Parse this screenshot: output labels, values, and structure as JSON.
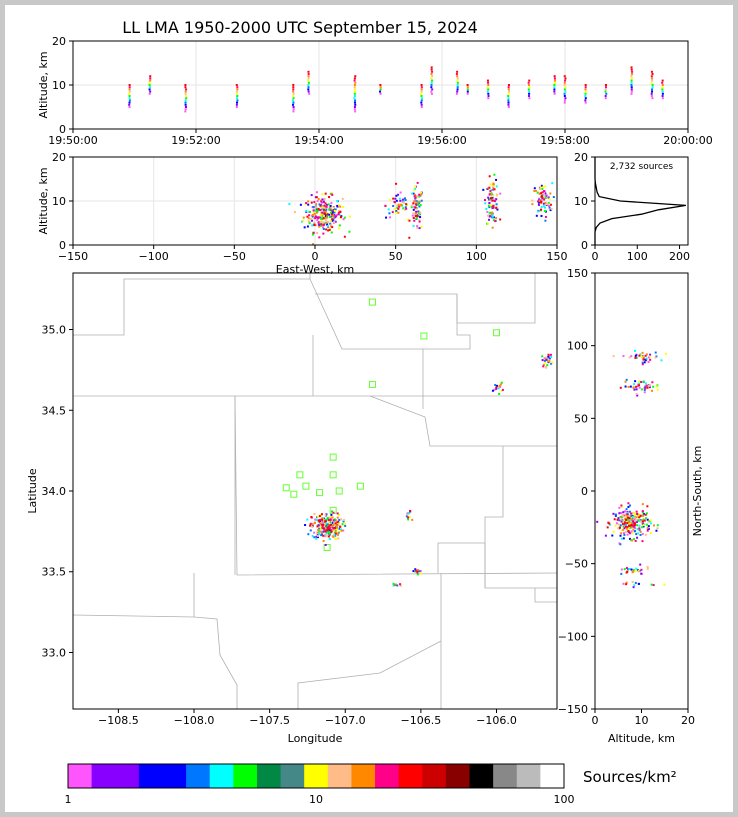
{
  "chart_data": [
    {
      "panel": "altitude-vs-time",
      "type": "scatter",
      "title": "LL LMA 1950-2000 UTC September 15, 2024",
      "ylabel": "Altitude, km",
      "xlabel": "",
      "xlim": [
        "19:50:00",
        "20:00:00"
      ],
      "ylim": [
        0,
        20
      ],
      "xticks": [
        "19:50:00",
        "19:52:00",
        "19:54:00",
        "19:56:00",
        "19:58:00",
        "20:00:00"
      ],
      "yticks": [
        "0",
        "10",
        "20"
      ],
      "grid": true,
      "columns": [
        {
          "t": "19:50:55",
          "zmin": 5,
          "zmax": 10
        },
        {
          "t": "19:51:15",
          "zmin": 8,
          "zmax": 12
        },
        {
          "t": "19:51:50",
          "zmin": 4,
          "zmax": 10
        },
        {
          "t": "19:52:40",
          "zmin": 5,
          "zmax": 10
        },
        {
          "t": "19:53:35",
          "zmin": 4,
          "zmax": 10
        },
        {
          "t": "19:53:50",
          "zmin": 8,
          "zmax": 13
        },
        {
          "t": "19:54:35",
          "zmin": 4,
          "zmax": 12
        },
        {
          "t": "19:55:00",
          "zmin": 8,
          "zmax": 10
        },
        {
          "t": "19:55:40",
          "zmin": 5,
          "zmax": 10
        },
        {
          "t": "19:55:50",
          "zmin": 8,
          "zmax": 14
        },
        {
          "t": "19:56:15",
          "zmin": 8,
          "zmax": 13
        },
        {
          "t": "19:56:25",
          "zmin": 8,
          "zmax": 10
        },
        {
          "t": "19:56:45",
          "zmin": 7,
          "zmax": 11
        },
        {
          "t": "19:57:05",
          "zmin": 5,
          "zmax": 10
        },
        {
          "t": "19:57:25",
          "zmin": 7,
          "zmax": 11
        },
        {
          "t": "19:57:50",
          "zmin": 8,
          "zmax": 12
        },
        {
          "t": "19:58:00",
          "zmin": 6,
          "zmax": 12
        },
        {
          "t": "19:58:20",
          "zmin": 6,
          "zmax": 10
        },
        {
          "t": "19:58:40",
          "zmin": 7,
          "zmax": 10
        },
        {
          "t": "19:59:05",
          "zmin": 8,
          "zmax": 14
        },
        {
          "t": "19:59:25",
          "zmin": 7,
          "zmax": 13
        },
        {
          "t": "19:59:35",
          "zmin": 7,
          "zmax": 11
        }
      ]
    },
    {
      "panel": "altitude-vs-east-west",
      "type": "scatter",
      "xlabel": "East-West, km",
      "ylabel": "Altitude, km",
      "xlim": [
        -150,
        150
      ],
      "ylim": [
        0,
        20
      ],
      "xticks": [
        "−150",
        "−100",
        "−50",
        "0",
        "50",
        "100",
        "150"
      ],
      "yticks": [
        "0",
        "10",
        "20"
      ],
      "grid": true,
      "clusters": [
        {
          "x": 5,
          "z": 7,
          "sx": 6,
          "sz": 2,
          "n": 260
        },
        {
          "x": 52,
          "z": 9,
          "sx": 4,
          "sz": 1.5,
          "n": 50
        },
        {
          "x": 63,
          "z": 8,
          "sx": 2,
          "sz": 2.5,
          "n": 80
        },
        {
          "x": 110,
          "z": 10,
          "sx": 2,
          "sz": 2.5,
          "n": 90
        },
        {
          "x": 141,
          "z": 10,
          "sx": 3,
          "sz": 2,
          "n": 80
        }
      ]
    },
    {
      "panel": "altitude-histogram",
      "type": "line",
      "annotation": "2,732 sources",
      "xlim": [
        0,
        220
      ],
      "ylim": [
        0,
        20
      ],
      "xticks": [
        "0",
        "100",
        "200"
      ],
      "yticks": [
        "0",
        "10",
        "20"
      ],
      "counts": [
        {
          "z": 0,
          "n": 0
        },
        {
          "z": 1,
          "n": 0
        },
        {
          "z": 2,
          "n": 0
        },
        {
          "z": 3,
          "n": 0
        },
        {
          "z": 4,
          "n": 3
        },
        {
          "z": 5,
          "n": 12
        },
        {
          "z": 6,
          "n": 40
        },
        {
          "z": 7,
          "n": 110
        },
        {
          "z": 8,
          "n": 150
        },
        {
          "z": 9,
          "n": 215
        },
        {
          "z": 10,
          "n": 60
        },
        {
          "z": 11,
          "n": 10
        },
        {
          "z": 12,
          "n": 5
        },
        {
          "z": 13,
          "n": 3
        },
        {
          "z": 14,
          "n": 1
        },
        {
          "z": 15,
          "n": 0
        },
        {
          "z": 16,
          "n": 0
        },
        {
          "z": 17,
          "n": 0
        },
        {
          "z": 18,
          "n": 0
        },
        {
          "z": 19,
          "n": 0
        },
        {
          "z": 20,
          "n": 0
        }
      ]
    },
    {
      "panel": "plan-view",
      "type": "scatter",
      "xlabel": "Longitude",
      "ylabel": "Latitude",
      "xlim": [
        -108.8,
        -105.6
      ],
      "ylim": [
        32.65,
        35.35
      ],
      "xticks": [
        "−108.5",
        "−108.0",
        "−107.5",
        "−107.0",
        "−106.5",
        "−106.0"
      ],
      "yticks": [
        "33.0",
        "33.5",
        "34.0",
        "34.5",
        "35.0"
      ],
      "clusters": [
        {
          "lon": -107.12,
          "lat": 33.78,
          "slon": 0.05,
          "slat": 0.04,
          "n": 260
        },
        {
          "lon": -106.58,
          "lat": 33.84,
          "slon": 0.01,
          "slat": 0.02,
          "n": 12
        },
        {
          "lon": -106.52,
          "lat": 33.5,
          "slon": 0.02,
          "slat": 0.01,
          "n": 15
        },
        {
          "lon": -106.66,
          "lat": 33.42,
          "slon": 0.02,
          "slat": 0.005,
          "n": 10
        },
        {
          "lon": -105.99,
          "lat": 34.64,
          "slon": 0.015,
          "slat": 0.015,
          "n": 15
        },
        {
          "lon": -105.66,
          "lat": 34.81,
          "slon": 0.02,
          "slat": 0.02,
          "n": 25
        }
      ],
      "stations": [
        {
          "lon": -106.82,
          "lat": 35.17
        },
        {
          "lon": -106.48,
          "lat": 34.96
        },
        {
          "lon": -106.0,
          "lat": 34.98
        },
        {
          "lon": -106.82,
          "lat": 34.66
        },
        {
          "lon": -107.08,
          "lat": 34.21
        },
        {
          "lon": -107.3,
          "lat": 34.1
        },
        {
          "lon": -107.08,
          "lat": 34.1
        },
        {
          "lon": -107.39,
          "lat": 34.02
        },
        {
          "lon": -107.26,
          "lat": 34.03
        },
        {
          "lon": -106.9,
          "lat": 34.03
        },
        {
          "lon": -107.34,
          "lat": 33.98
        },
        {
          "lon": -107.17,
          "lat": 33.99
        },
        {
          "lon": -107.04,
          "lat": 34.0
        },
        {
          "lon": -107.08,
          "lat": 33.88
        },
        {
          "lon": -107.12,
          "lat": 33.65
        }
      ]
    },
    {
      "panel": "north-south-vs-altitude",
      "type": "scatter",
      "xlabel": "Altitude, km",
      "ylabel": "North-South, km",
      "xlim": [
        0,
        20
      ],
      "ylim": [
        -150,
        150
      ],
      "xticks": [
        "0",
        "10",
        "20"
      ],
      "yticks": [
        "−150",
        "−100",
        "−50",
        "0",
        "50",
        "100",
        "150"
      ],
      "clusters": [
        {
          "z": 10,
          "y": 92,
          "sz": 2,
          "sy": 2,
          "n": 40
        },
        {
          "z": 10,
          "y": 72,
          "sz": 2,
          "sy": 2,
          "n": 45
        },
        {
          "z": 8,
          "y": -22,
          "sz": 2,
          "sy": 5,
          "n": 250
        },
        {
          "z": 8,
          "y": -55,
          "sz": 2,
          "sy": 1.5,
          "n": 25
        },
        {
          "z": 9,
          "y": -64,
          "sz": 2,
          "sy": 1,
          "n": 12
        }
      ]
    },
    {
      "panel": "colorbar",
      "type": "heatmap",
      "label": "Sources/km²",
      "range": [
        1,
        100
      ],
      "ticks": [
        "1",
        "10",
        "100"
      ],
      "colors": [
        "#ff55ff",
        "#8800ff",
        "#8800ff",
        "#0000ff",
        "#0000ff",
        "#0077ff",
        "#00ffff",
        "#00ff00",
        "#008844",
        "#448888",
        "#ffff00",
        "#ffbb88",
        "#ff8800",
        "#ff0088",
        "#ff0000",
        "#cc0000",
        "#880000",
        "#000000",
        "#888888",
        "#bbbbbb",
        "#ffffff"
      ]
    }
  ]
}
